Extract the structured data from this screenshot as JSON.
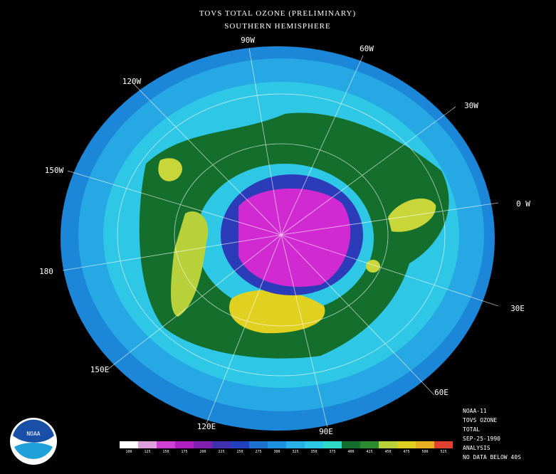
{
  "header": {
    "title": "TOVS TOTAL OZONE (PRELIMINARY)",
    "subtitle": "SOUTHERN HEMISPHERE"
  },
  "longitudes": [
    "90W",
    "60W",
    "30W",
    "0 W",
    "30E",
    "60E",
    "90E",
    "120E",
    "150E",
    "180",
    "150W",
    "120W"
  ],
  "info": [
    "NOAA-11",
    "TOVS OZONE",
    "TOTAL",
    "SEP-25-1990",
    "ANALYSIS",
    "NO DATA BELOW 40S"
  ],
  "logo": "NOAA",
  "scale": [
    "100",
    "125",
    "150",
    "175",
    "200",
    "225",
    "250",
    "275",
    "300",
    "325",
    "350",
    "375",
    "400",
    "425",
    "450",
    "475",
    "500",
    "525"
  ]
}
